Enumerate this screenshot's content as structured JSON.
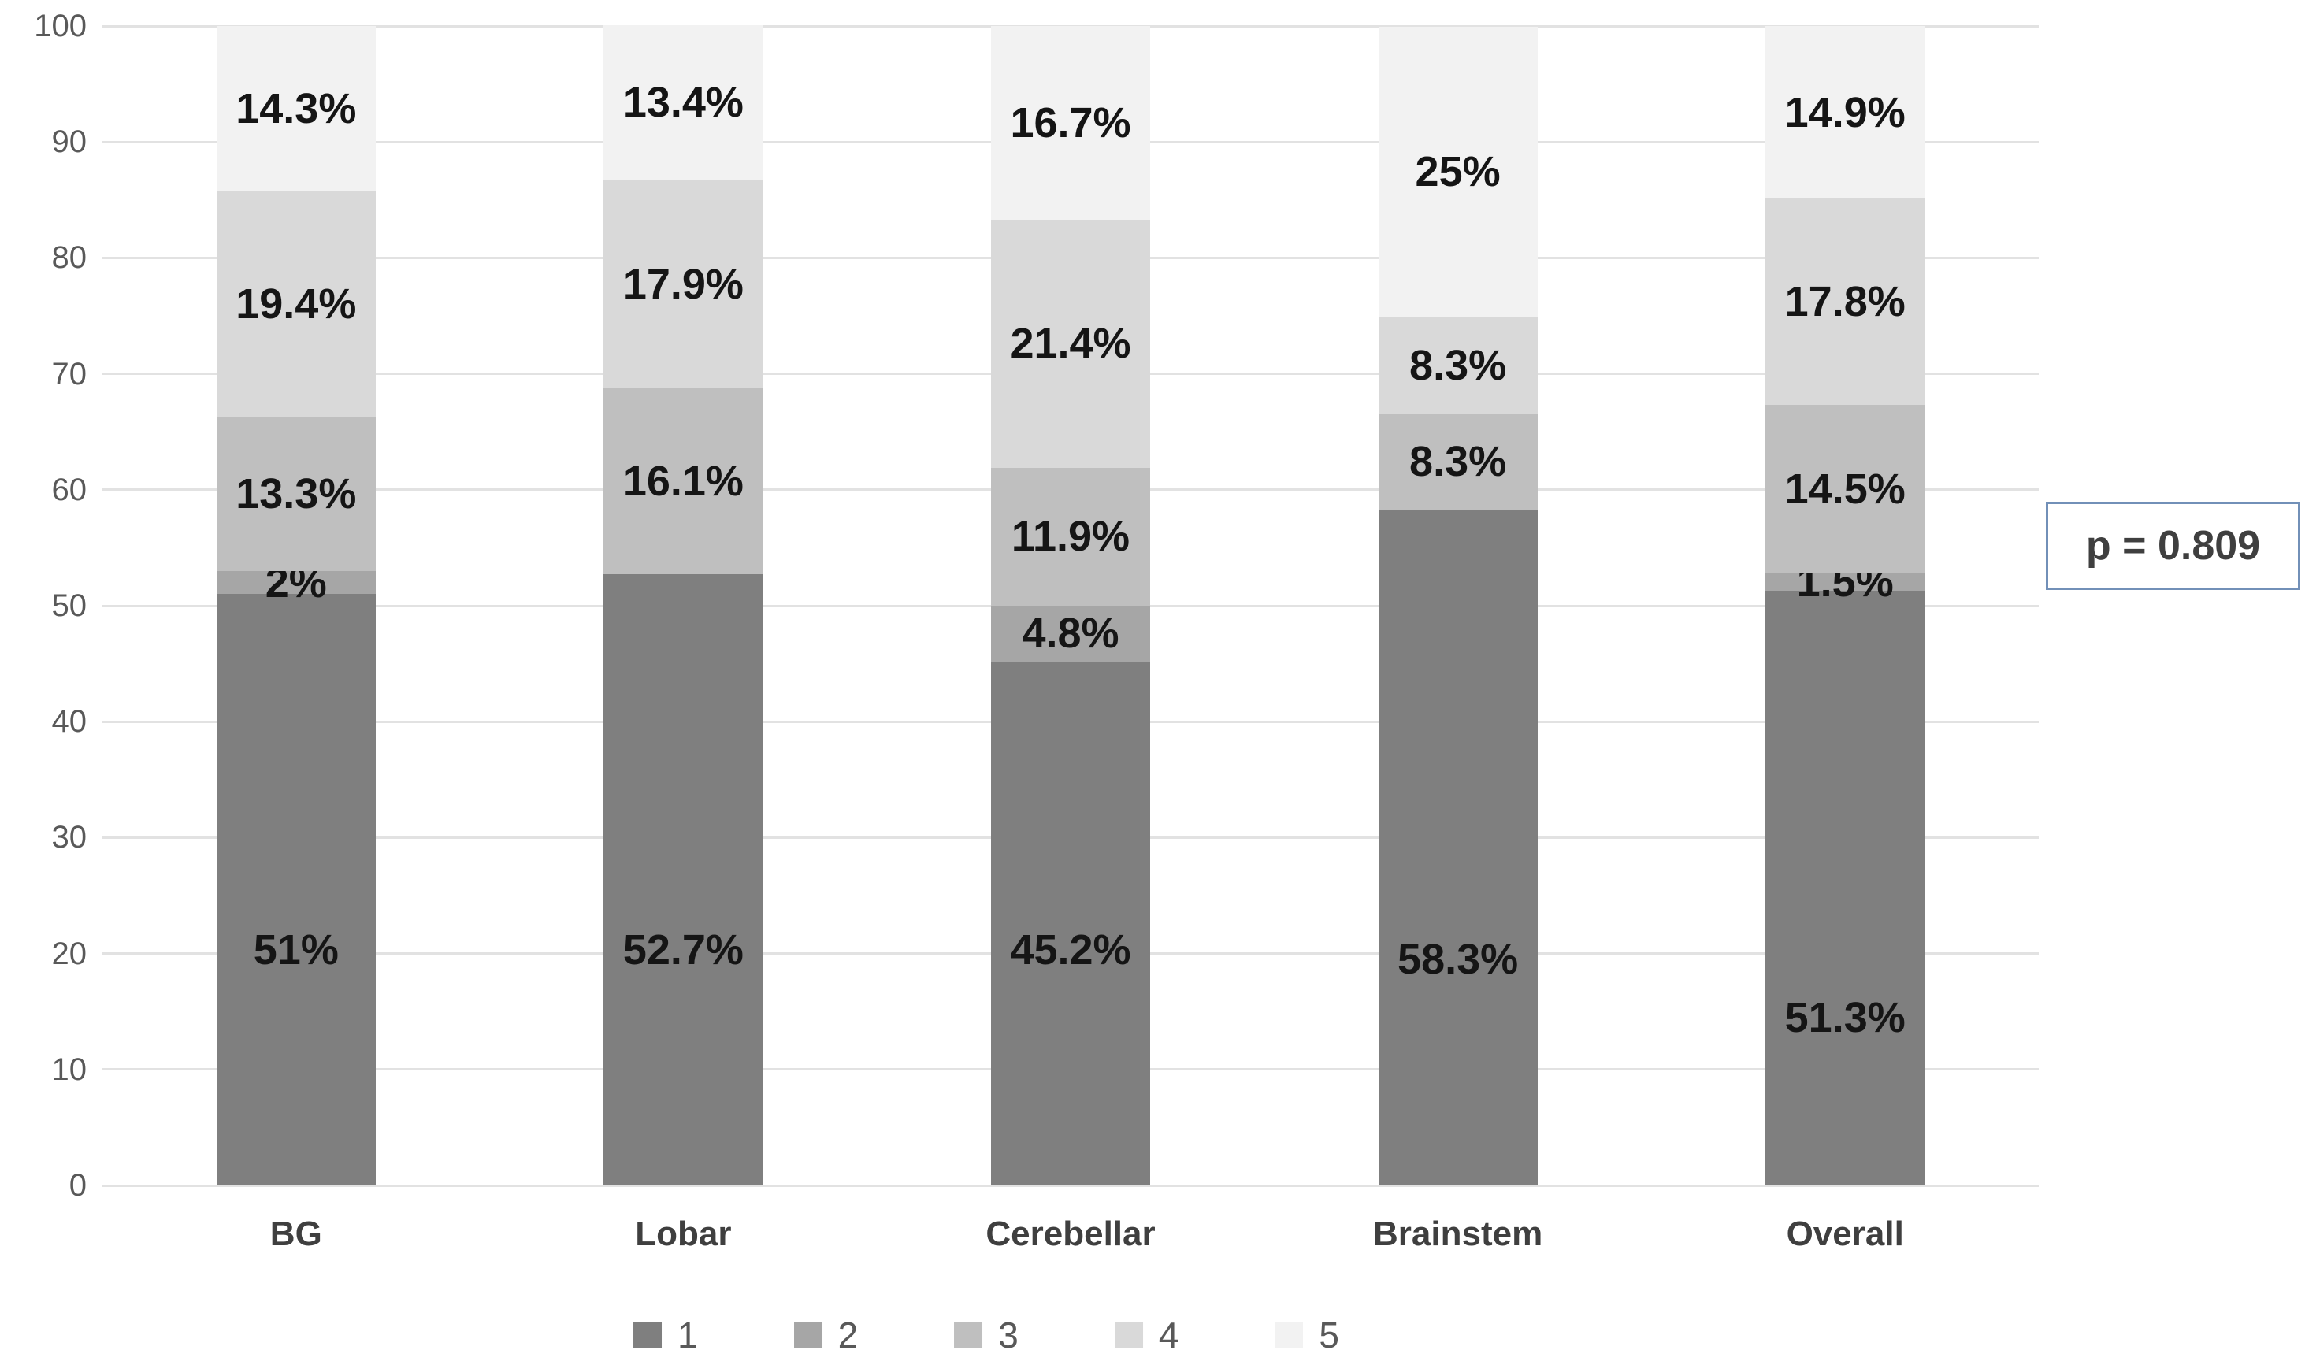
{
  "chart_data": {
    "type": "bar",
    "stacked": true,
    "orientation": "vertical",
    "title": "",
    "categories": [
      "BG",
      "Lobar",
      "Cerebellar",
      "Brainstem",
      "Overall"
    ],
    "series": [
      {
        "name": "1",
        "color": "#7f7f7f",
        "values": [
          51,
          52.7,
          45.2,
          58.3,
          51.3
        ],
        "labels": [
          "51%",
          "52.7%",
          "45.2%",
          "58.3%",
          "51.3%"
        ]
      },
      {
        "name": "2",
        "color": "#a6a6a6",
        "values": [
          2,
          0,
          4.8,
          0,
          1.5
        ],
        "labels": [
          "2%",
          "",
          "4.8%",
          "",
          "1.5%"
        ]
      },
      {
        "name": "3",
        "color": "#bfbfbf",
        "values": [
          13.3,
          16.1,
          11.9,
          8.3,
          14.5
        ],
        "labels": [
          "13.3%",
          "16.1%",
          "11.9%",
          "8.3%",
          "14.5%"
        ]
      },
      {
        "name": "4",
        "color": "#d9d9d9",
        "values": [
          19.4,
          17.9,
          21.4,
          8.3,
          17.8
        ],
        "labels": [
          "19.4%",
          "17.9%",
          "21.4%",
          "8.3%",
          "17.8%"
        ]
      },
      {
        "name": "5",
        "color": "#f2f2f2",
        "values": [
          14.3,
          13.4,
          16.7,
          25,
          14.9
        ],
        "labels": [
          "14.3%",
          "13.4%",
          "16.7%",
          "25%",
          "14.9%"
        ]
      }
    ],
    "xlabel": "",
    "ylabel": "",
    "ylim": [
      0,
      100
    ],
    "yticks": [
      "0",
      "10",
      "20",
      "30",
      "40",
      "50",
      "60",
      "70",
      "80",
      "90",
      "100"
    ],
    "grid": "horizontal",
    "gridline_color": "#e2e2e2",
    "legend_position": "bottom",
    "legend_items": [
      "1",
      "2",
      "3",
      "4",
      "5"
    ],
    "label_hints": {
      "series_1_label_y_units": [
        20.3,
        20.3,
        20.3,
        19.5,
        14.5
      ]
    }
  },
  "annotation": {
    "text": "p = 0.809",
    "border_color": "#7290b8"
  }
}
